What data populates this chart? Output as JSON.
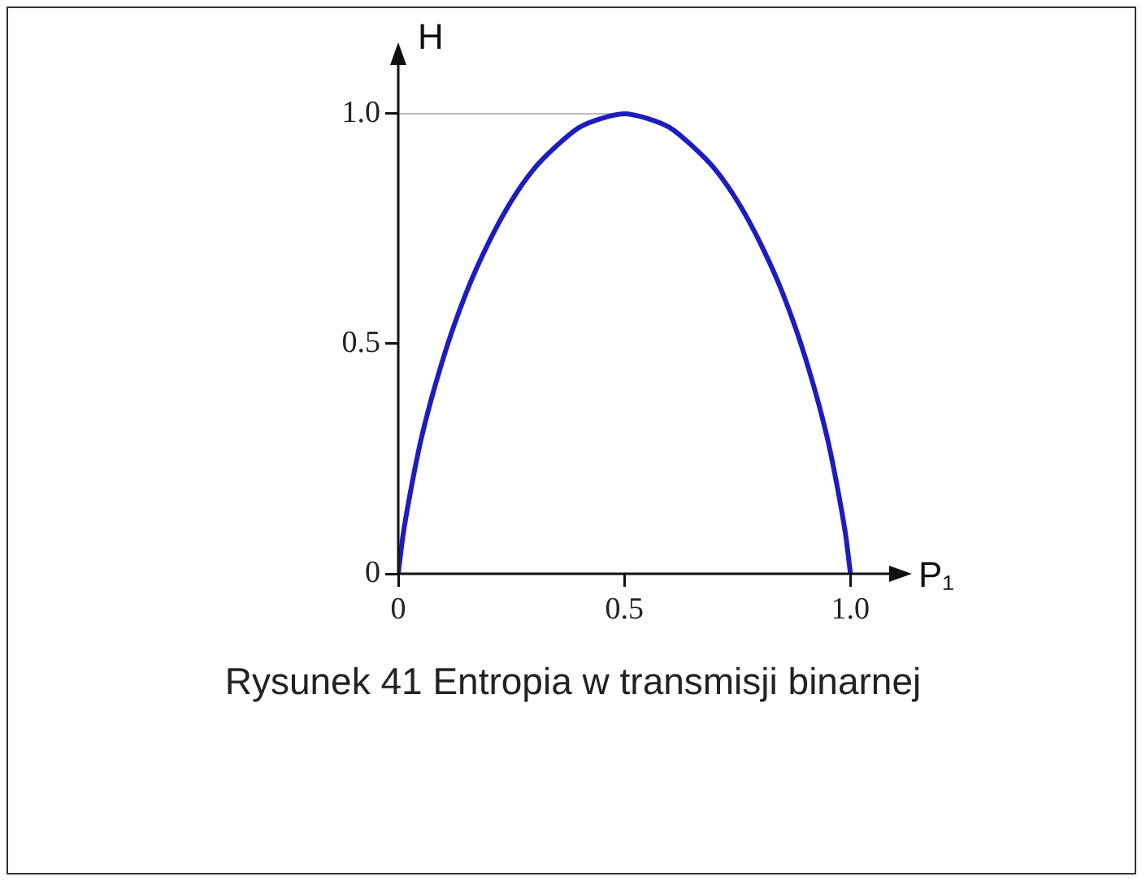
{
  "chart_data": {
    "type": "line",
    "xlabel": "P₁",
    "ylabel": "H",
    "x": [
      0,
      0.01,
      0.02,
      0.05,
      0.1,
      0.15,
      0.2,
      0.25,
      0.3,
      0.35,
      0.4,
      0.45,
      0.5,
      0.55,
      0.6,
      0.65,
      0.7,
      0.75,
      0.8,
      0.85,
      0.9,
      0.95,
      0.98,
      0.99,
      1
    ],
    "series": [
      {
        "color": "#1c1cc0",
        "values": [
          0,
          0.08,
          0.14,
          0.29,
          0.47,
          0.61,
          0.72,
          0.81,
          0.88,
          0.93,
          0.97,
          0.99,
          1,
          0.99,
          0.97,
          0.93,
          0.88,
          0.81,
          0.72,
          0.61,
          0.47,
          0.29,
          0.14,
          0.08,
          0
        ]
      }
    ],
    "xlim": [
      0,
      1.1
    ],
    "ylim": [
      0,
      1.12
    ],
    "xticks": [
      0,
      0.5,
      {
        "value": 1,
        "label": "1.0"
      }
    ],
    "yticks": [
      0,
      0.5,
      {
        "value": 1,
        "label": "1.0"
      }
    ],
    "ref_lines": [
      {
        "axis": "y",
        "value": 1.0,
        "color": "#bbbbbb"
      }
    ],
    "annotations": [
      "Rysunek 41 Entropia w transmisji binarnej"
    ],
    "grid": false,
    "legend": false,
    "marker": "none",
    "line_style": "solid"
  }
}
